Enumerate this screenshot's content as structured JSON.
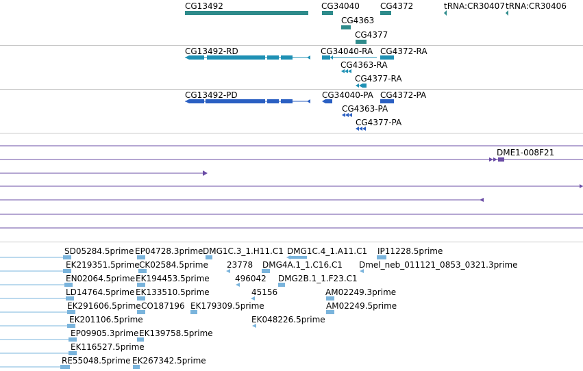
{
  "colors": {
    "gene": "#2e8b8b",
    "transcript_rd": "#1e90b4",
    "transcript_pd": "#2a5fc2",
    "clone": "#6a4ca5",
    "est": "#7ab4dc",
    "separator": "#c8c8c8"
  },
  "gene_track": {
    "labels": [
      "CG13492",
      "CG34040",
      "CG4363",
      "CG4372",
      "CG4377",
      "tRNA:CR30407",
      "tRNA:CR30406"
    ]
  },
  "transcript_rd_track": {
    "labels": [
      "CG13492-RD",
      "CG34040-RA",
      "CG4372-RA",
      "CG4363-RA",
      "CG4377-RA"
    ]
  },
  "transcript_pd_track": {
    "labels": [
      "CG13492-PD",
      "CG34040-PA",
      "CG4372-PA",
      "CG4363-PA",
      "CG4377-PA"
    ]
  },
  "clone_track": {
    "labels": [
      "DME1-008F21"
    ]
  },
  "est_track": {
    "labels": [
      "SD05284.5prime",
      "EP04728.3prime",
      "DMG1C.3_1.H11.C1",
      "DMG1C.4_1.A11.C1",
      "IP11228.5prime",
      "EK219351.5prime",
      "CK02584.5prime",
      "23778",
      "DMG4A.1_1.C16.C1",
      "Dmel_neb_011121_0853_0321.3prime",
      "EN02064.5prime",
      "EK194453.5prime",
      "496042",
      "DMG2B.1_1.F23.C1",
      "LD14764.5prime",
      "EK133510.5prime",
      "45156",
      "AM02249.3prime",
      "EK291606.5prime",
      "CO187196",
      "EK179309.5prime",
      "AM02249.5prime",
      "EK201106.5prime",
      "EK048226.5prime",
      "EP09905.3prime",
      "EK139758.5prime",
      "EK116527.5prime",
      "RE55048.5prime",
      "EK267342.5prime"
    ]
  }
}
